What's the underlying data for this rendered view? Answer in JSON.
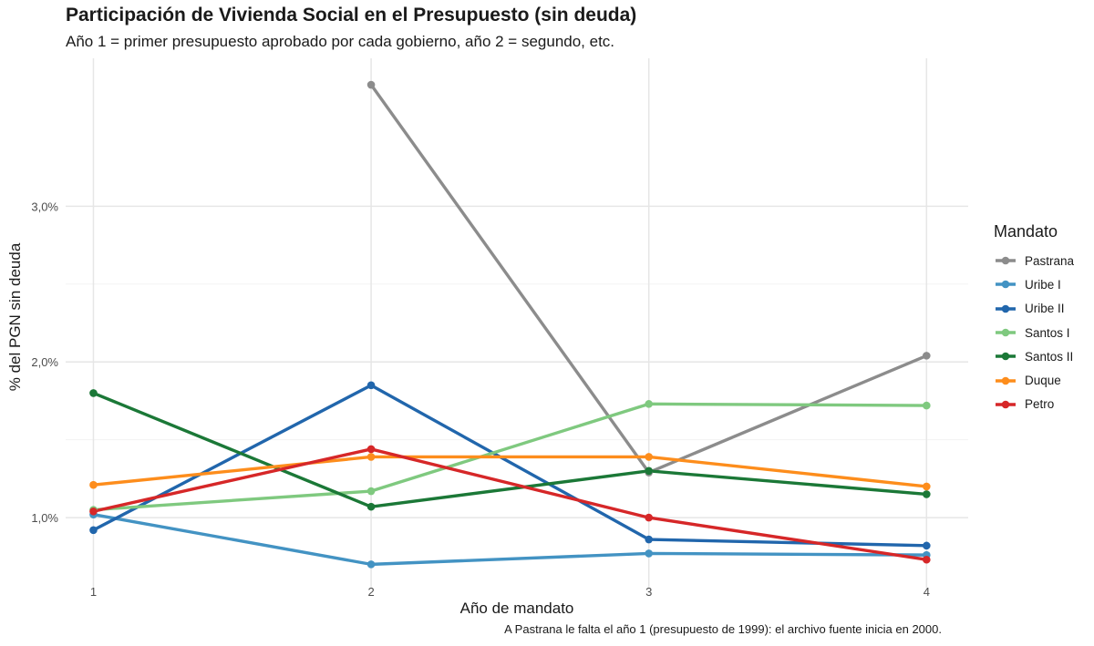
{
  "title": "Participación de Vivienda Social en el Presupuesto (sin deuda)",
  "subtitle": "Año 1 = primer presupuesto aprobado por cada gobierno, año 2 = segundo, etc.",
  "caption": "A Pastrana le falta el año 1 (presupuesto de 1999): el archivo fuente inicia en 2000.",
  "chart_data": {
    "type": "line",
    "xlabel": "Año de mandato",
    "ylabel": "% del PGN sin deuda",
    "x": [
      1,
      2,
      3,
      4
    ],
    "x_tick_labels": [
      "1",
      "2",
      "3",
      "4"
    ],
    "y_ticks": [
      1.0,
      2.0,
      3.0
    ],
    "y_tick_labels": [
      "1,0%",
      "2,0%",
      "3,0%"
    ],
    "xlim": [
      0.9,
      4.15
    ],
    "ylim": [
      0.55,
      3.95
    ],
    "grid": true,
    "legend_title": "Mandato",
    "legend_position": "right",
    "series": [
      {
        "name": "Pastrana",
        "color": "#8c8c8c",
        "values": [
          null,
          3.78,
          1.29,
          2.04
        ]
      },
      {
        "name": "Uribe I",
        "color": "#4393c3",
        "values": [
          1.02,
          0.7,
          0.77,
          0.76
        ]
      },
      {
        "name": "Uribe II",
        "color": "#2166ac",
        "values": [
          0.92,
          1.85,
          0.86,
          0.82
        ]
      },
      {
        "name": "Santos I",
        "color": "#7fc97f",
        "values": [
          1.05,
          1.17,
          1.73,
          1.72
        ]
      },
      {
        "name": "Santos II",
        "color": "#1b7837",
        "values": [
          1.8,
          1.07,
          1.3,
          1.15
        ]
      },
      {
        "name": "Duque",
        "color": "#fd8d1c",
        "values": [
          1.21,
          1.39,
          1.39,
          1.2
        ]
      },
      {
        "name": "Petro",
        "color": "#d62728",
        "values": [
          1.04,
          1.44,
          1.0,
          0.73
        ]
      }
    ]
  }
}
